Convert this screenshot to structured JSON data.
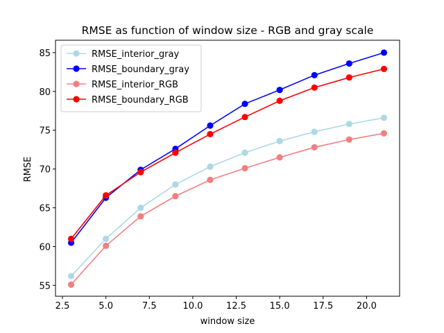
{
  "chart_data": {
    "type": "line",
    "title": "RMSE as function of window size - RGB and gray scale",
    "xlabel": "window size",
    "ylabel": "RMSE",
    "xlim": [
      2.1,
      21.9
    ],
    "ylim": [
      53.6,
      86.6
    ],
    "x_ticks": [
      2.5,
      5.0,
      7.5,
      10.0,
      12.5,
      15.0,
      17.5,
      20.0
    ],
    "x_tick_labels": [
      "2.5",
      "5.0",
      "7.5",
      "10.0",
      "12.5",
      "15.0",
      "17.5",
      "20.0"
    ],
    "y_ticks": [
      55,
      60,
      65,
      70,
      75,
      80,
      85
    ],
    "y_tick_labels": [
      "55",
      "60",
      "65",
      "70",
      "75",
      "80",
      "85"
    ],
    "grid": false,
    "legend_position": "top-left",
    "x": [
      3,
      5,
      7,
      9,
      11,
      13,
      15,
      17,
      19,
      21
    ],
    "series": [
      {
        "name": "RMSE_interior_gray",
        "color": "#add8e6",
        "values": [
          56.2,
          61.0,
          65.0,
          68.0,
          70.3,
          72.1,
          73.6,
          74.8,
          75.8,
          76.6
        ]
      },
      {
        "name": "RMSE_boundary_gray",
        "color": "#0000ff",
        "values": [
          60.5,
          66.3,
          69.9,
          72.6,
          75.6,
          78.4,
          80.2,
          82.1,
          83.6,
          85.0
        ]
      },
      {
        "name": "RMSE_interior_RGB",
        "color": "#f08080",
        "values": [
          55.1,
          60.1,
          63.9,
          66.5,
          68.6,
          70.1,
          71.5,
          72.8,
          73.8,
          74.6
        ]
      },
      {
        "name": "RMSE_boundary_RGB",
        "color": "#ff0000",
        "values": [
          61.0,
          66.6,
          69.6,
          72.1,
          74.5,
          76.7,
          78.8,
          80.5,
          81.8,
          82.9
        ]
      }
    ]
  }
}
